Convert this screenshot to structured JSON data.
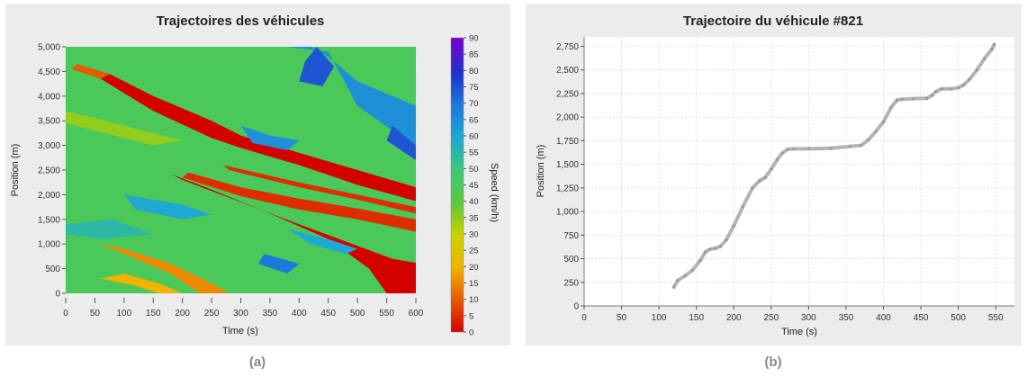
{
  "figure": {
    "caption_a": "(a)",
    "caption_b": "(b)"
  },
  "chart_data": [
    {
      "type": "heatmap",
      "title": "Trajectoires des véhicules",
      "xlabel": "Time (s)",
      "ylabel": "Position (m)",
      "colorbar_label": "Speed (km/h)",
      "xlim": [
        0,
        600
      ],
      "ylim": [
        0,
        5000
      ],
      "xticks": [
        0,
        50,
        100,
        150,
        200,
        250,
        300,
        350,
        400,
        450,
        500,
        550,
        600
      ],
      "yticks": [
        0,
        500,
        1000,
        1500,
        2000,
        2500,
        3000,
        3500,
        4000,
        4500,
        5000
      ],
      "ytick_labels": [
        "0",
        "500",
        "1,000",
        "1,500",
        "2,000",
        "2,500",
        "3,000",
        "3,500",
        "4,000",
        "4,500",
        "5,000"
      ],
      "colorbar_range": [
        0,
        90
      ],
      "colorbar_ticks": [
        0,
        5,
        10,
        15,
        20,
        25,
        30,
        35,
        40,
        45,
        50,
        55,
        60,
        65,
        70,
        75,
        80,
        85,
        90
      ],
      "background_speed": 45,
      "regions": [
        {
          "speed": 0,
          "polygon": [
            [
              550,
              0
            ],
            [
              600,
              0
            ],
            [
              600,
              620
            ],
            [
              560,
              700
            ],
            [
              400,
              1400
            ],
            [
              300,
              1850
            ],
            [
              200,
              2300
            ],
            [
              180,
              2420
            ],
            [
              240,
              2150
            ],
            [
              350,
              1620
            ],
            [
              450,
              1100
            ],
            [
              520,
              500
            ]
          ]
        },
        {
          "speed": 5,
          "polygon": [
            [
              200,
              2350
            ],
            [
              300,
              1970
            ],
            [
              400,
              1700
            ],
            [
              500,
              1500
            ],
            [
              600,
              1250
            ],
            [
              600,
              1500
            ],
            [
              500,
              1720
            ],
            [
              400,
              1920
            ],
            [
              300,
              2150
            ],
            [
              210,
              2450
            ]
          ]
        },
        {
          "speed": 0,
          "polygon": [
            [
              75,
              4450
            ],
            [
              150,
              4000
            ],
            [
              250,
              3500
            ],
            [
              300,
              3200
            ],
            [
              400,
              2850
            ],
            [
              500,
              2500
            ],
            [
              600,
              2150
            ],
            [
              600,
              1870
            ],
            [
              500,
              2200
            ],
            [
              400,
              2600
            ],
            [
              300,
              2950
            ],
            [
              250,
              3150
            ],
            [
              150,
              3700
            ],
            [
              60,
              4350
            ]
          ]
        },
        {
          "speed": 10,
          "polygon": [
            [
              20,
              4650
            ],
            [
              75,
              4450
            ],
            [
              60,
              4350
            ],
            [
              10,
              4550
            ]
          ]
        },
        {
          "speed": 5,
          "polygon": [
            [
              270,
              2600
            ],
            [
              400,
              2250
            ],
            [
              500,
              2000
            ],
            [
              600,
              1750
            ],
            [
              600,
              1620
            ],
            [
              500,
              1900
            ],
            [
              400,
              2150
            ],
            [
              280,
              2500
            ]
          ]
        },
        {
          "speed": 15,
          "polygon": [
            [
              100,
              900
            ],
            [
              180,
              600
            ],
            [
              250,
              200
            ],
            [
              280,
              0
            ],
            [
              230,
              0
            ],
            [
              180,
              400
            ],
            [
              120,
              700
            ],
            [
              60,
              1000
            ]
          ]
        },
        {
          "speed": 20,
          "polygon": [
            [
              100,
              400
            ],
            [
              160,
              200
            ],
            [
              200,
              0
            ],
            [
              160,
              0
            ],
            [
              120,
              150
            ],
            [
              60,
              300
            ]
          ]
        },
        {
          "speed": 65,
          "polygon": [
            [
              380,
              5000
            ],
            [
              450,
              4900
            ],
            [
              500,
              3800
            ],
            [
              560,
              3300
            ],
            [
              600,
              3000
            ],
            [
              600,
              3800
            ],
            [
              500,
              4300
            ],
            [
              450,
              4800
            ],
            [
              420,
              5000
            ]
          ]
        },
        {
          "speed": 75,
          "polygon": [
            [
              430,
              5000
            ],
            [
              460,
              4600
            ],
            [
              440,
              4200
            ],
            [
              400,
              4300
            ],
            [
              410,
              4700
            ]
          ]
        },
        {
          "speed": 75,
          "polygon": [
            [
              560,
              3400
            ],
            [
              600,
              3000
            ],
            [
              600,
              2700
            ],
            [
              550,
              3100
            ]
          ]
        },
        {
          "speed": 65,
          "polygon": [
            [
              300,
              3400
            ],
            [
              350,
              3200
            ],
            [
              400,
              3100
            ],
            [
              380,
              2900
            ],
            [
              320,
              3050
            ]
          ]
        },
        {
          "speed": 70,
          "polygon": [
            [
              340,
              800
            ],
            [
              400,
              600
            ],
            [
              380,
              400
            ],
            [
              330,
              600
            ]
          ]
        },
        {
          "speed": 60,
          "polygon": [
            [
              100,
              2000
            ],
            [
              200,
              1800
            ],
            [
              250,
              1600
            ],
            [
              200,
              1500
            ],
            [
              120,
              1700
            ]
          ]
        },
        {
          "speed": 60,
          "polygon": [
            [
              380,
              1300
            ],
            [
              450,
              1100
            ],
            [
              500,
              900
            ],
            [
              480,
              800
            ],
            [
              420,
              1000
            ]
          ]
        },
        {
          "speed": 35,
          "polygon": [
            [
              0,
              3700
            ],
            [
              100,
              3400
            ],
            [
              200,
              3100
            ],
            [
              150,
              3000
            ],
            [
              50,
              3300
            ],
            [
              0,
              3450
            ]
          ]
        },
        {
          "speed": 55,
          "polygon": [
            [
              0,
              1400
            ],
            [
              80,
              1500
            ],
            [
              150,
              1200
            ],
            [
              60,
              1100
            ],
            [
              0,
              1200
            ]
          ]
        }
      ]
    },
    {
      "type": "line",
      "title": "Trajectoire du véhicule #821",
      "xlabel": "Time (s)",
      "ylabel": "Position (m)",
      "xlim": [
        0,
        575
      ],
      "ylim": [
        0,
        2850
      ],
      "xticks": [
        0,
        50,
        100,
        150,
        200,
        250,
        300,
        350,
        400,
        450,
        500,
        550
      ],
      "yticks": [
        0,
        250,
        500,
        750,
        1000,
        1250,
        1500,
        1750,
        2000,
        2250,
        2500,
        2750
      ],
      "ytick_labels": [
        "0",
        "250",
        "500",
        "750",
        "1,000",
        "1,250",
        "1,500",
        "1,750",
        "2,000",
        "2,250",
        "2,500",
        "2,750"
      ],
      "series": [
        {
          "color": "#b4b4b4",
          "x": [
            120,
            125,
            135,
            145,
            155,
            162,
            168,
            175,
            182,
            190,
            200,
            212,
            225,
            235,
            242,
            250,
            258,
            265,
            272,
            280,
            300,
            330,
            355,
            370,
            380,
            390,
            400,
            410,
            418,
            425,
            440,
            458,
            465,
            470,
            478,
            490,
            500,
            507,
            515,
            525,
            535,
            545,
            548
          ],
          "y": [
            200,
            270,
            320,
            380,
            480,
            570,
            600,
            610,
            630,
            700,
            850,
            1050,
            1250,
            1330,
            1360,
            1450,
            1550,
            1620,
            1660,
            1665,
            1665,
            1670,
            1690,
            1700,
            1760,
            1850,
            1950,
            2100,
            2180,
            2190,
            2195,
            2200,
            2230,
            2270,
            2300,
            2300,
            2310,
            2340,
            2400,
            2500,
            2620,
            2720,
            2770
          ]
        }
      ]
    }
  ]
}
